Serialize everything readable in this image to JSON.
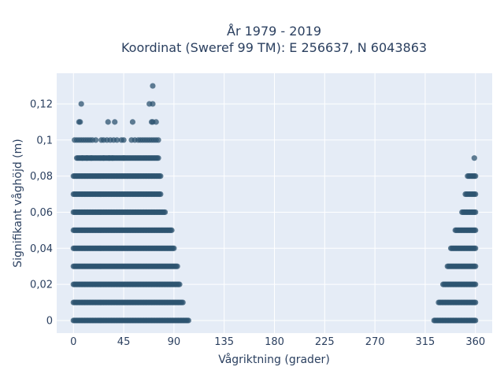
{
  "chart_data": {
    "type": "scatter",
    "title_line1": "År 1979 - 2019",
    "title_line2": "Koordinat (Sweref 99 TM): E 256637, N 6043863",
    "xlabel": "Vågriktning (grader)",
    "ylabel": "Signifikant våghöjd (m)",
    "xlim": [
      -15,
      375
    ],
    "ylim": [
      -0.007,
      0.137
    ],
    "x_ticks": [
      0,
      45,
      90,
      135,
      180,
      225,
      270,
      315,
      360
    ],
    "x_tick_labels": [
      "0",
      "45",
      "90",
      "135",
      "180",
      "225",
      "270",
      "315",
      "360"
    ],
    "y_ticks": [
      0,
      0.02,
      0.04,
      0.06,
      0.08,
      0.1,
      0.12
    ],
    "y_tick_labels": [
      "0",
      "0,02",
      "0,04",
      "0,06",
      "0,08",
      "0,1",
      "0,12"
    ],
    "marker_color": "#2e5470",
    "plot_bg": "#e5ecf6",
    "grid_color": "#ffffff",
    "bands": [
      {
        "y": 0.0,
        "x_from": 0,
        "x_to": 103,
        "x_from2": 323,
        "x_to2": 360
      },
      {
        "y": 0.01,
        "x_from": 0,
        "x_to": 98,
        "x_from2": 327,
        "x_to2": 360
      },
      {
        "y": 0.02,
        "x_from": 0,
        "x_to": 95,
        "x_from2": 331,
        "x_to2": 360
      },
      {
        "y": 0.03,
        "x_from": 0,
        "x_to": 93,
        "x_from2": 335,
        "x_to2": 360
      },
      {
        "y": 0.04,
        "x_from": 0,
        "x_to": 90,
        "x_from2": 338,
        "x_to2": 360
      },
      {
        "y": 0.05,
        "x_from": 0,
        "x_to": 88,
        "x_from2": 342,
        "x_to2": 360
      },
      {
        "y": 0.06,
        "x_from": 0,
        "x_to": 82,
        "x_from2": 348,
        "x_to2": 360
      },
      {
        "y": 0.07,
        "x_from": 0,
        "x_to": 78,
        "x_from2": 351,
        "x_to2": 360
      },
      {
        "y": 0.08,
        "x_from": 0,
        "x_to": 78,
        "x_from2": 353,
        "x_to2": 360
      },
      {
        "y": 0.09,
        "x_from": 3,
        "x_to": 76,
        "x_from2": null,
        "x_to2": null
      }
    ],
    "sparse_points": [
      [
        1,
        0.1
      ],
      [
        3,
        0.1
      ],
      [
        5,
        0.1
      ],
      [
        7,
        0.1
      ],
      [
        9,
        0.1
      ],
      [
        11,
        0.1
      ],
      [
        13,
        0.1
      ],
      [
        15,
        0.1
      ],
      [
        17,
        0.1
      ],
      [
        20,
        0.1
      ],
      [
        25,
        0.1
      ],
      [
        27,
        0.1
      ],
      [
        30,
        0.1
      ],
      [
        33,
        0.1
      ],
      [
        36,
        0.1
      ],
      [
        39,
        0.1
      ],
      [
        43,
        0.1
      ],
      [
        45,
        0.1
      ],
      [
        52,
        0.1
      ],
      [
        55,
        0.1
      ],
      [
        58,
        0.1
      ],
      [
        60,
        0.1
      ],
      [
        62,
        0.1
      ],
      [
        64,
        0.1
      ],
      [
        66,
        0.1
      ],
      [
        68,
        0.1
      ],
      [
        70,
        0.1
      ],
      [
        72,
        0.1
      ],
      [
        74,
        0.1
      ],
      [
        76,
        0.1
      ],
      [
        8,
        0.09
      ],
      [
        12,
        0.09
      ],
      [
        16,
        0.09
      ],
      [
        27,
        0.09
      ],
      [
        32,
        0.09
      ],
      [
        35,
        0.09
      ],
      [
        45,
        0.09
      ],
      [
        5,
        0.11
      ],
      [
        6,
        0.11
      ],
      [
        31,
        0.11
      ],
      [
        37,
        0.11
      ],
      [
        53,
        0.11
      ],
      [
        70,
        0.11
      ],
      [
        71,
        0.11
      ],
      [
        74,
        0.11
      ],
      [
        7,
        0.12
      ],
      [
        68,
        0.12
      ],
      [
        71,
        0.12
      ],
      [
        71,
        0.13
      ],
      [
        359,
        0.09
      ]
    ]
  }
}
